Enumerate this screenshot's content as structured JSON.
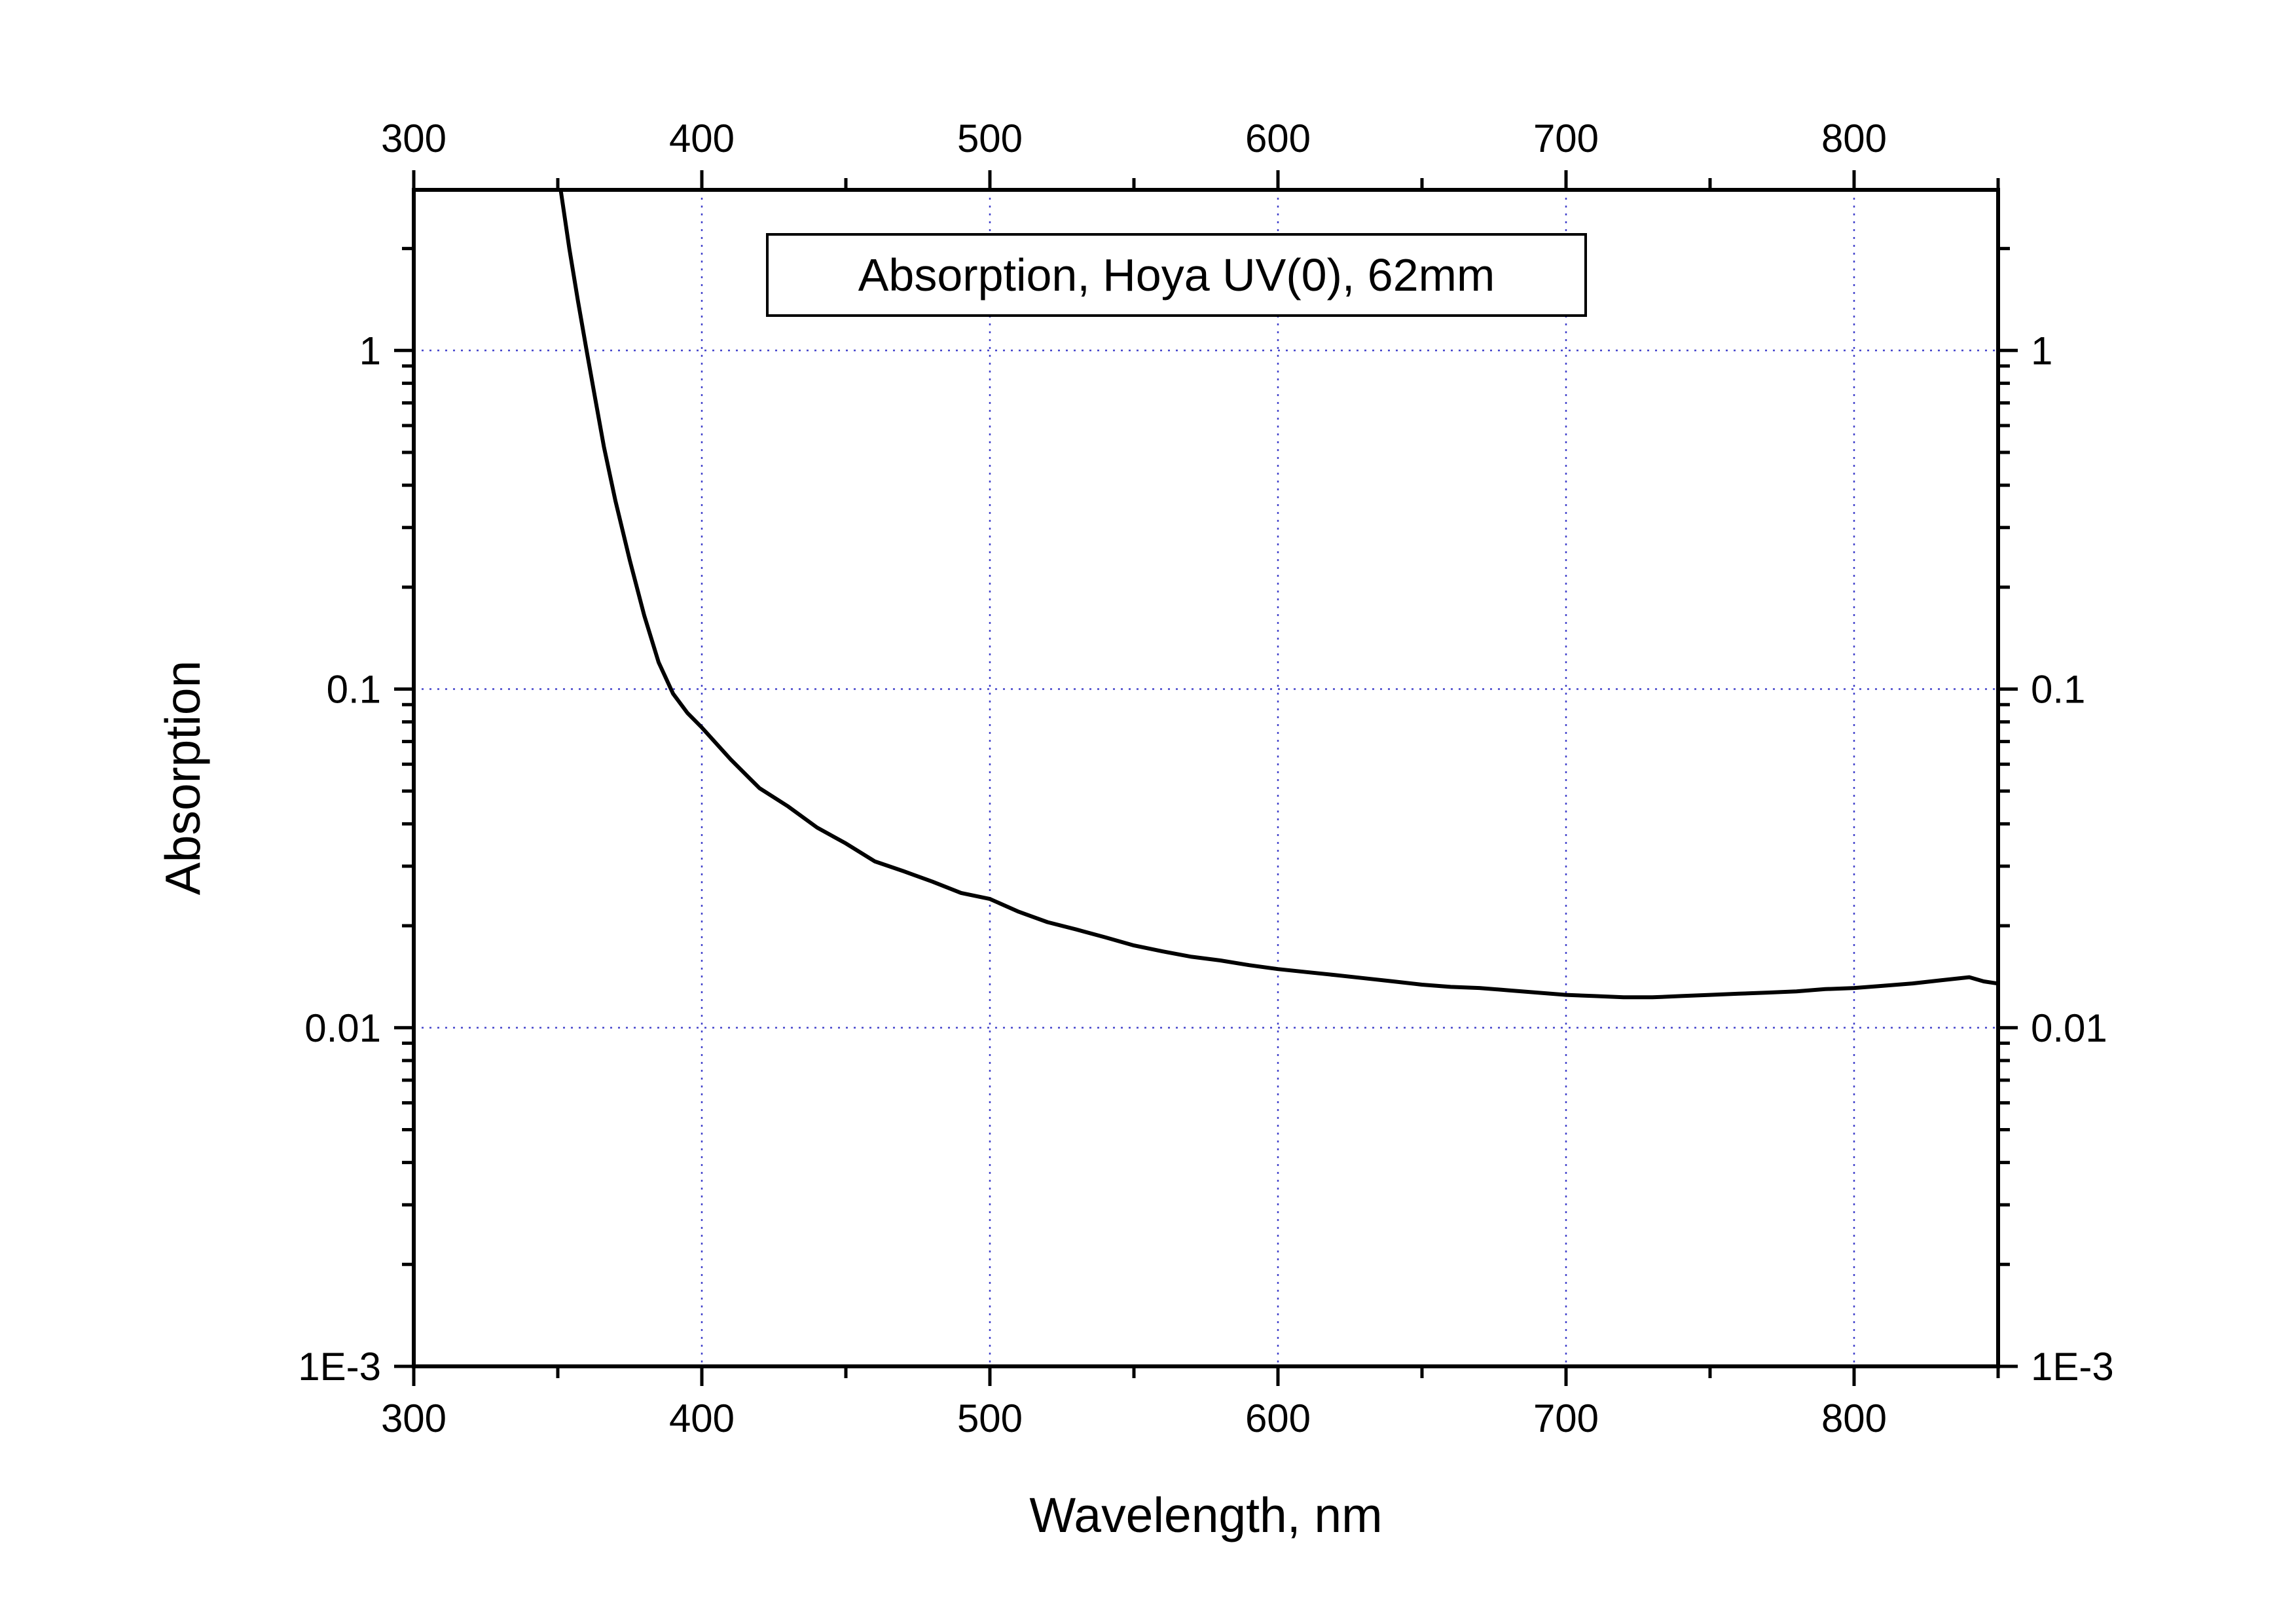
{
  "chart_data": {
    "type": "line",
    "title": "",
    "xlabel": "Wavelength, nm",
    "ylabel": "Absorption",
    "xlim": [
      300,
      850
    ],
    "ylim": [
      0.001,
      2.98
    ],
    "yscale": "log",
    "grid": true,
    "legend": "top-center",
    "xticks": [
      300,
      400,
      500,
      600,
      700,
      800
    ],
    "xtick_labels": [
      "300",
      "400",
      "500",
      "600",
      "700",
      "800"
    ],
    "yticks": [
      0.001,
      0.01,
      0.1,
      1
    ],
    "ytick_labels": [
      "1E-3",
      "0.01",
      "0.1",
      "1"
    ],
    "annotation": "Absorption, Hoya UV(0), 62mm",
    "series": [
      {
        "name": "Absorption, Hoya UV(0), 62mm",
        "color": "#000000",
        "x": [
          351,
          354,
          357,
          360,
          363,
          366,
          370,
          375,
          380,
          385,
          390,
          395,
          400,
          410,
          420,
          430,
          440,
          450,
          460,
          470,
          480,
          490,
          500,
          510,
          520,
          530,
          540,
          550,
          560,
          570,
          580,
          590,
          600,
          610,
          620,
          630,
          640,
          650,
          660,
          670,
          680,
          690,
          700,
          710,
          720,
          730,
          740,
          750,
          760,
          770,
          780,
          790,
          800,
          810,
          820,
          830,
          840,
          845,
          850
        ],
        "y": [
          3.0,
          2.0,
          1.4,
          1.0,
          0.72,
          0.52,
          0.36,
          0.24,
          0.165,
          0.12,
          0.097,
          0.085,
          0.077,
          0.062,
          0.051,
          0.045,
          0.039,
          0.035,
          0.031,
          0.029,
          0.027,
          0.025,
          0.024,
          0.022,
          0.0205,
          0.0195,
          0.0185,
          0.0175,
          0.0168,
          0.0162,
          0.0158,
          0.0153,
          0.0149,
          0.0146,
          0.0143,
          0.014,
          0.0137,
          0.0134,
          0.0132,
          0.0131,
          0.0129,
          0.0127,
          0.0125,
          0.0124,
          0.0123,
          0.0123,
          0.0124,
          0.0125,
          0.0126,
          0.0127,
          0.0128,
          0.013,
          0.0131,
          0.0133,
          0.0135,
          0.0138,
          0.0141,
          0.0137,
          0.0135
        ]
      }
    ]
  }
}
